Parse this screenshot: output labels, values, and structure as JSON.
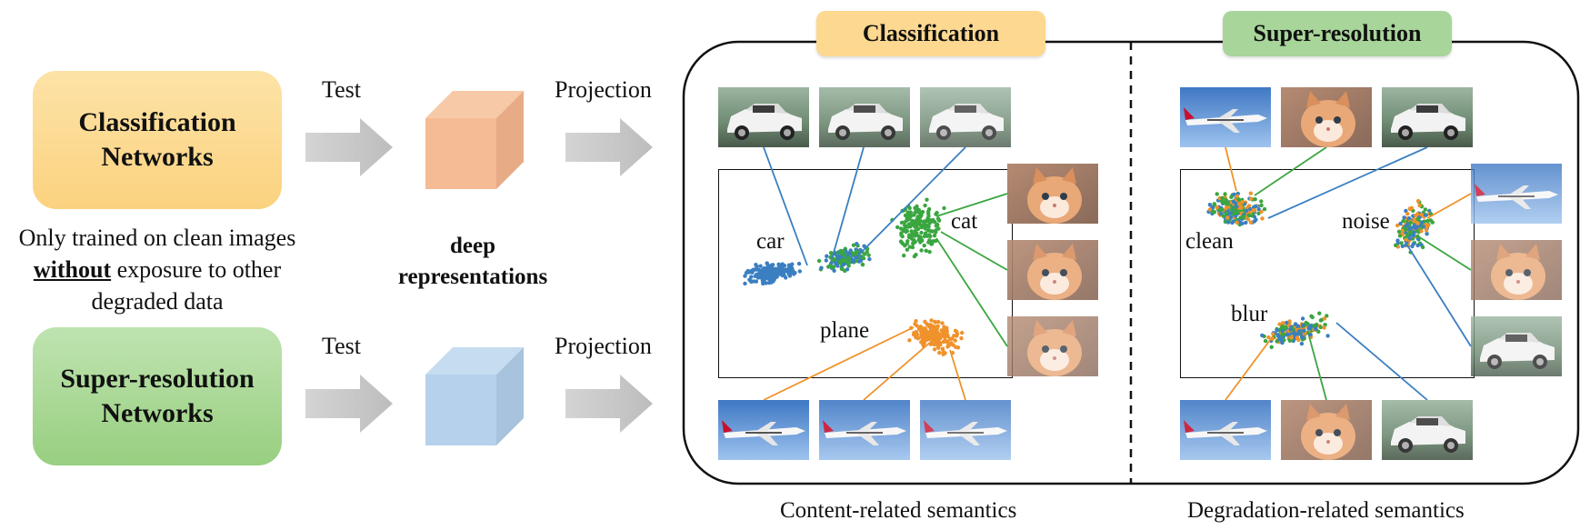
{
  "networks": {
    "classification": "Classification Networks",
    "super_resolution": "Super-resolution Networks"
  },
  "note": {
    "line1": "Only trained on clean images",
    "emphasis": "without",
    "line2": " exposure to other",
    "line3": "degraded data"
  },
  "flow": {
    "test_top": "Test",
    "test_bottom": "Test",
    "projection_top": "Projection",
    "projection_bottom": "Projection",
    "deep_repr": "deep representations"
  },
  "panels": {
    "left_title": "Classification",
    "right_title": "Super-resolution",
    "left_caption": "Content-related semantics",
    "right_caption": "Degradation-related semantics"
  },
  "clusters": {
    "car": "car",
    "cat": "cat",
    "plane": "plane",
    "clean": "clean",
    "noise": "noise",
    "blur": "blur"
  },
  "colors": {
    "blue": "#3a7fc1",
    "green": "#3aa640",
    "orange": "#f0922b"
  }
}
